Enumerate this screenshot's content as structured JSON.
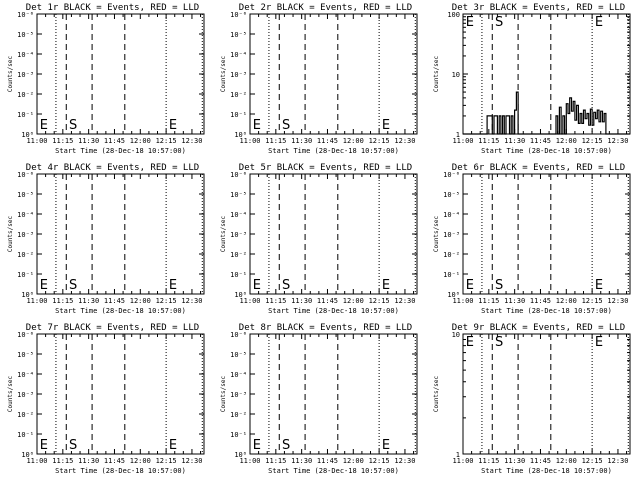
{
  "window": {
    "title": ""
  },
  "common": {
    "xlabel": "Start Time (28-Dec-18 10:57:00)",
    "ylabel": "Counts/sec",
    "x_ticks": [
      "11:00",
      "11:15",
      "11:30",
      "11:45",
      "12:00",
      "12:15",
      "12:30"
    ],
    "x_tick_values_min": [
      0,
      15,
      30,
      45,
      60,
      75,
      90
    ],
    "xlim_min": [
      0,
      97
    ],
    "vlines": {
      "dotted_min": [
        11,
        75,
        96
      ],
      "dashed_min": [
        17,
        32,
        51
      ]
    },
    "markers": [
      {
        "label": "E",
        "x_min": 1
      },
      {
        "label": "S",
        "x_min": 18
      },
      {
        "label": "E",
        "x_min": 76
      }
    ],
    "colors": {
      "events": "#000000",
      "lld": "#ff0000",
      "axes": "#000000"
    }
  },
  "chart_data": [
    {
      "type": "line",
      "title": "Det 1r BLACK = Events, RED = LLD",
      "scale": "empty",
      "y_ticks": [
        "10⁰",
        "10⁻¹",
        "10⁻²",
        "10⁻³",
        "10⁻⁴",
        "10⁻⁵",
        "10⁻⁶"
      ],
      "series": []
    },
    {
      "type": "line",
      "title": "Det 2r BLACK = Events, RED = LLD",
      "scale": "empty",
      "y_ticks": [
        "10⁰",
        "10⁻¹",
        "10⁻²",
        "10⁻³",
        "10⁻⁴",
        "10⁻⁵",
        "10⁻⁶"
      ],
      "series": []
    },
    {
      "type": "line",
      "title": "Det 3r BLACK = Events, RED = LLD",
      "scale": "log",
      "y_ticks": [
        "1",
        "10",
        "100"
      ],
      "ylim": [
        1,
        100
      ],
      "series": [
        {
          "values": [
            [
              0,
              1
            ],
            [
              14,
              1
            ],
            [
              14,
              2
            ],
            [
              17,
              2
            ],
            [
              17,
              1
            ],
            [
              18,
              1
            ],
            [
              18,
              2
            ],
            [
              20,
              2
            ],
            [
              20,
              1
            ],
            [
              21,
              1
            ],
            [
              21,
              2
            ],
            [
              22,
              2
            ],
            [
              22,
              1
            ],
            [
              23,
              1
            ],
            [
              23,
              2
            ],
            [
              24,
              2
            ],
            [
              24,
              1
            ],
            [
              25,
              1
            ],
            [
              25,
              2
            ],
            [
              27,
              2
            ],
            [
              27,
              1
            ],
            [
              28,
              1
            ],
            [
              28,
              2
            ],
            [
              29,
              2
            ],
            [
              29,
              1
            ],
            [
              30,
              1
            ],
            [
              30,
              2.5
            ],
            [
              31,
              2.5
            ],
            [
              31,
              5
            ],
            [
              32,
              5
            ],
            [
              32,
              1
            ],
            [
              54,
              1
            ],
            [
              54,
              2
            ],
            [
              55,
              2
            ],
            [
              55,
              1
            ],
            [
              56,
              1
            ],
            [
              56,
              2.8
            ],
            [
              57,
              2.8
            ],
            [
              57,
              1
            ],
            [
              58,
              1
            ],
            [
              58,
              2
            ],
            [
              59,
              2
            ],
            [
              59,
              1
            ],
            [
              60,
              1
            ],
            [
              60,
              3.2
            ],
            [
              61,
              3.2
            ],
            [
              61,
              2.2
            ],
            [
              62,
              2.2
            ],
            [
              62,
              4
            ],
            [
              63,
              4
            ],
            [
              63,
              2.4
            ],
            [
              64,
              2.4
            ],
            [
              64,
              3.5
            ],
            [
              65,
              3.5
            ],
            [
              65,
              1.7
            ],
            [
              66,
              1.7
            ],
            [
              66,
              3
            ],
            [
              67,
              3
            ],
            [
              67,
              1.5
            ],
            [
              68,
              1.5
            ],
            [
              68,
              2.2
            ],
            [
              69,
              2.2
            ],
            [
              69,
              1.5
            ],
            [
              70,
              1.5
            ],
            [
              70,
              2.5
            ],
            [
              71,
              2.5
            ],
            [
              71,
              1.8
            ],
            [
              72,
              1.8
            ],
            [
              72,
              2.2
            ],
            [
              73,
              2.2
            ],
            [
              73,
              1.4
            ],
            [
              74,
              1.4
            ],
            [
              74,
              2.6
            ],
            [
              75,
              2.6
            ],
            [
              75,
              1.4
            ],
            [
              76,
              1.4
            ],
            [
              76,
              2.3
            ],
            [
              77,
              2.3
            ],
            [
              77,
              1.8
            ],
            [
              78,
              1.8
            ],
            [
              78,
              2.5
            ],
            [
              79,
              2.5
            ],
            [
              79,
              1.6
            ],
            [
              80,
              1.6
            ],
            [
              80,
              2.4
            ],
            [
              81,
              2.4
            ],
            [
              81,
              1.6
            ],
            [
              82,
              1.6
            ],
            [
              82,
              2.2
            ],
            [
              83,
              2.2
            ],
            [
              83,
              1
            ],
            [
              97,
              1
            ]
          ]
        }
      ],
      "markers_at_top": true
    },
    {
      "type": "line",
      "title": "Det 4r BLACK = Events, RED = LLD",
      "scale": "empty",
      "y_ticks": [
        "10⁰",
        "10⁻¹",
        "10⁻²",
        "10⁻³",
        "10⁻⁴",
        "10⁻⁵",
        "10⁻⁶"
      ],
      "series": []
    },
    {
      "type": "line",
      "title": "Det 5r BLACK = Events, RED = LLD",
      "scale": "empty",
      "y_ticks": [
        "10⁰",
        "10⁻¹",
        "10⁻²",
        "10⁻³",
        "10⁻⁴",
        "10⁻⁵",
        "10⁻⁶"
      ],
      "series": []
    },
    {
      "type": "line",
      "title": "Det 6r BLACK = Events, RED = LLD",
      "scale": "empty",
      "y_ticks": [
        "10⁰",
        "10⁻¹",
        "10⁻²",
        "10⁻³",
        "10⁻⁴",
        "10⁻⁵",
        "10⁻⁶"
      ],
      "series": []
    },
    {
      "type": "line",
      "title": "Det 7r BLACK = Events, RED = LLD",
      "scale": "empty",
      "y_ticks": [
        "10⁰",
        "10⁻¹",
        "10⁻²",
        "10⁻³",
        "10⁻⁴",
        "10⁻⁵",
        "10⁻⁶"
      ],
      "series": []
    },
    {
      "type": "line",
      "title": "Det 8r BLACK = Events, RED = LLD",
      "scale": "empty",
      "y_ticks": [
        "10⁰",
        "10⁻¹",
        "10⁻²",
        "10⁻³",
        "10⁻⁴",
        "10⁻⁵",
        "10⁻⁶"
      ],
      "series": []
    },
    {
      "type": "line",
      "title": "Det 9r BLACK = Events, RED = LLD",
      "scale": "log",
      "y_ticks": [
        "1",
        "10"
      ],
      "ylim": [
        1,
        10
      ],
      "series": [],
      "markers_at_top": true
    }
  ]
}
